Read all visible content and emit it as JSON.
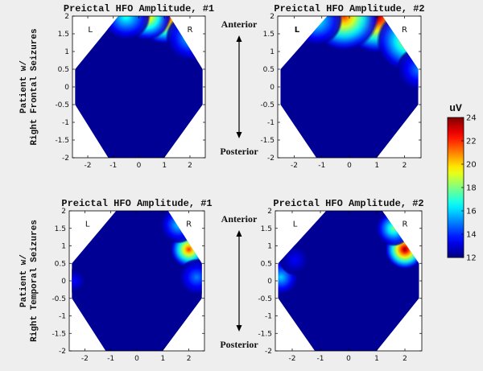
{
  "chart_data": [
    {
      "type": "heatmap",
      "title": "Preictal HFO Amplitude, #1",
      "row_label": "Patient w/ Right Frontal Seizures",
      "x_ticks": [
        "-2",
        "-1",
        "0",
        "1",
        "2"
      ],
      "y_ticks": [
        "2",
        "1.5",
        "1",
        "0.5",
        "0",
        "-0.5",
        "-1",
        "-1.5",
        "-2"
      ],
      "xlim": [
        -2.6,
        2.6
      ],
      "ylim": [
        -2,
        2
      ],
      "side_labels": [
        "L",
        "R"
      ],
      "baseline_uV": 12,
      "hotspots": [
        {
          "x": 1.0,
          "y": 2.0,
          "peak_uV": 24,
          "spread": 0.7
        },
        {
          "x": 0.3,
          "y": 2.0,
          "peak_uV": 21,
          "spread": 0.6
        },
        {
          "x": -0.5,
          "y": 2.0,
          "peak_uV": 17,
          "spread": 0.6
        },
        {
          "x": 2.0,
          "y": 1.4,
          "peak_uV": 16,
          "spread": 0.6
        }
      ]
    },
    {
      "type": "heatmap",
      "title": "Preictal HFO Amplitude, #2",
      "x_ticks": [
        "-2",
        "-1",
        "0",
        "1",
        "2"
      ],
      "y_ticks": [
        "2",
        "1.5",
        "1",
        "0.5",
        "0",
        "-0.5",
        "-1",
        "-1.5",
        "-2"
      ],
      "xlim": [
        -2.6,
        2.6
      ],
      "ylim": [
        -2,
        2
      ],
      "side_labels": [
        "L",
        "R"
      ],
      "orientation_labels": [
        "Anterior",
        "Posterior"
      ],
      "baseline_uV": 12,
      "hotspots": [
        {
          "x": 1.0,
          "y": 2.0,
          "peak_uV": 24,
          "spread": 0.85
        },
        {
          "x": -0.2,
          "y": 2.0,
          "peak_uV": 22,
          "spread": 0.8
        },
        {
          "x": -1.2,
          "y": 1.9,
          "peak_uV": 17,
          "spread": 0.6
        },
        {
          "x": 2.1,
          "y": 1.3,
          "peak_uV": 19,
          "spread": 0.7
        },
        {
          "x": 2.5,
          "y": 0.5,
          "peak_uV": 15,
          "spread": 0.5
        }
      ]
    },
    {
      "type": "heatmap",
      "title": "Preictal HFO Amplitude, #1",
      "row_label": "Patient w/ Right Temporal Seizures",
      "x_ticks": [
        "-2",
        "-1",
        "0",
        "1",
        "2"
      ],
      "y_ticks": [
        "2",
        "1.5",
        "1",
        "0.5",
        "0",
        "-0.5",
        "-1",
        "-1.5",
        "-2"
      ],
      "xlim": [
        -2.6,
        2.6
      ],
      "ylim": [
        -2,
        2
      ],
      "side_labels": [
        "L",
        "R"
      ],
      "baseline_uV": 12,
      "hotspots": [
        {
          "x": 2.0,
          "y": 0.9,
          "peak_uV": 22,
          "spread": 0.45
        },
        {
          "x": 1.6,
          "y": 1.6,
          "peak_uV": 16,
          "spread": 0.45
        },
        {
          "x": 2.3,
          "y": 0.1,
          "peak_uV": 15,
          "spread": 0.45
        },
        {
          "x": -2.4,
          "y": 0.0,
          "peak_uV": 13.5,
          "spread": 0.3
        }
      ]
    },
    {
      "type": "heatmap",
      "title": "Preictal HFO Amplitude, #2",
      "x_ticks": [
        "-2",
        "-1",
        "0",
        "1",
        "2"
      ],
      "y_ticks": [
        "2",
        "1.5",
        "1",
        "0.5",
        "0",
        "-0.5",
        "-1",
        "-1.5",
        "-2"
      ],
      "xlim": [
        -2.6,
        2.6
      ],
      "ylim": [
        -2,
        2
      ],
      "side_labels": [
        "L",
        "R"
      ],
      "orientation_labels": [
        "Anterior",
        "Posterior"
      ],
      "baseline_uV": 12,
      "hotspots": [
        {
          "x": 2.0,
          "y": 0.9,
          "peak_uV": 24,
          "spread": 0.45
        },
        {
          "x": 1.6,
          "y": 1.5,
          "peak_uV": 18,
          "spread": 0.4
        },
        {
          "x": -2.4,
          "y": 0.1,
          "peak_uV": 16,
          "spread": 0.4
        },
        {
          "x": -1.9,
          "y": 0.6,
          "peak_uV": 13.5,
          "spread": 0.35
        }
      ]
    }
  ],
  "colorbar": {
    "unit": "uV",
    "min": 12,
    "max": 24,
    "ticks": [
      "24",
      "22",
      "20",
      "18",
      "16",
      "14",
      "12"
    ],
    "colormap": "jet"
  }
}
